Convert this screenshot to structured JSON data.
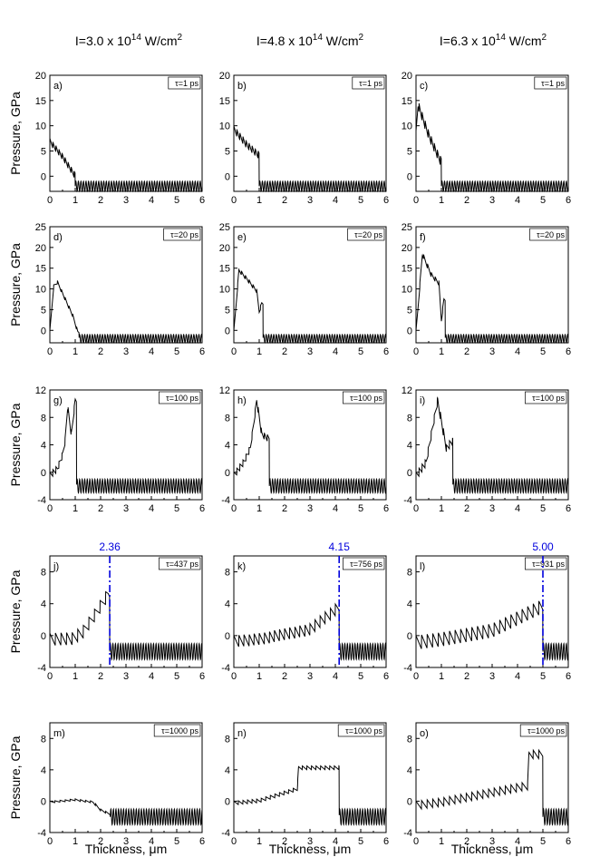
{
  "column_headers": [
    {
      "base": "I=3.0 x 10",
      "exp": "14",
      "unit": " W/cm",
      "unit_exp": "2"
    },
    {
      "base": "I=4.8 x 10",
      "exp": "14",
      "unit": " W/cm",
      "unit_exp": "2"
    },
    {
      "base": "I=6.3 x 10",
      "exp": "14",
      "unit": " W/cm",
      "unit_exp": "2"
    }
  ],
  "colors": {
    "line": "#000000",
    "marker": "#0000dd",
    "frame": "#000000"
  },
  "chart_data": {
    "type": "line",
    "ylabel": "Pressure, GPa",
    "xlabel": "Thickness, μm",
    "xlim": [
      0,
      6
    ],
    "xticks": [
      "0",
      "1",
      "2",
      "3",
      "4",
      "5",
      "6"
    ],
    "rows": [
      {
        "ylim": [
          -3,
          20
        ],
        "yticks": [
          0,
          5,
          10,
          15,
          20
        ],
        "ytick_labels": [
          "0",
          "5",
          "10",
          "15",
          "20"
        ]
      },
      {
        "ylim": [
          -3,
          25
        ],
        "yticks": [
          0,
          5,
          10,
          15,
          20,
          25
        ],
        "ytick_labels": [
          "0",
          "5",
          "10",
          "15",
          "20",
          "25"
        ]
      },
      {
        "ylim": [
          -4,
          12
        ],
        "yticks": [
          -4,
          0,
          4,
          8,
          12
        ],
        "ytick_labels": [
          "-4",
          "0",
          "4",
          "8",
          "12"
        ]
      },
      {
        "ylim": [
          -4,
          10
        ],
        "yticks": [
          -4,
          0,
          4,
          8
        ],
        "ytick_labels": [
          "-4",
          "0",
          "4",
          "8"
        ]
      },
      {
        "ylim": [
          -4,
          10
        ],
        "yticks": [
          -4,
          0,
          4,
          8
        ],
        "ytick_labels": [
          "-4",
          "0",
          "4",
          "8"
        ]
      }
    ],
    "background_oscillation": {
      "mean": -2,
      "amplitude": 1,
      "period": 0.1
    },
    "panels": [
      {
        "id": "a)",
        "row": 0,
        "col": 0,
        "time": "τ=1 ps",
        "front": 1.0,
        "profile": [
          [
            0,
            7.5
          ],
          [
            0.5,
            4.5
          ],
          [
            0.95,
            1.0
          ]
        ],
        "ripple": {
          "amp": 1.3,
          "period": 0.12
        }
      },
      {
        "id": "b)",
        "row": 0,
        "col": 1,
        "time": "τ=1 ps",
        "front": 1.0,
        "profile": [
          [
            0,
            10
          ],
          [
            0.5,
            7
          ],
          [
            0.95,
            5
          ]
        ],
        "ripple": {
          "amp": 1.5,
          "period": 0.12
        }
      },
      {
        "id": "c)",
        "row": 0,
        "col": 2,
        "time": "τ=1 ps",
        "front": 1.0,
        "profile": [
          [
            0,
            9
          ],
          [
            0.08,
            15
          ],
          [
            0.5,
            9
          ],
          [
            0.95,
            4
          ]
        ],
        "ripple": {
          "amp": 1.8,
          "period": 0.12
        }
      },
      {
        "id": "d)",
        "row": 1,
        "col": 0,
        "time": "τ=20 ps",
        "front": 1.15,
        "profile": [
          [
            0,
            0
          ],
          [
            0.15,
            11
          ],
          [
            0.3,
            12
          ],
          [
            0.6,
            8
          ],
          [
            0.9,
            4
          ],
          [
            1.1,
            0
          ]
        ],
        "ripple": {
          "amp": 0.8,
          "period": 0.15
        }
      },
      {
        "id": "e)",
        "row": 1,
        "col": 1,
        "time": "τ=20 ps",
        "front": 1.15,
        "profile": [
          [
            0,
            0
          ],
          [
            0.2,
            15
          ],
          [
            0.5,
            13
          ],
          [
            0.9,
            10
          ],
          [
            1.0,
            5
          ],
          [
            1.1,
            7
          ]
        ],
        "ripple": {
          "amp": 1.0,
          "period": 0.15
        }
      },
      {
        "id": "f)",
        "row": 1,
        "col": 2,
        "time": "τ=20 ps",
        "front": 1.15,
        "profile": [
          [
            0,
            0
          ],
          [
            0.25,
            19
          ],
          [
            0.6,
            14
          ],
          [
            0.9,
            12
          ],
          [
            1.0,
            3
          ],
          [
            1.1,
            8
          ]
        ],
        "ripple": {
          "amp": 1.2,
          "period": 0.15
        }
      },
      {
        "id": "g)",
        "row": 2,
        "col": 0,
        "time": "τ=100 ps",
        "front": 1.05,
        "profile": [
          [
            0,
            0
          ],
          [
            0.3,
            1
          ],
          [
            0.5,
            3
          ],
          [
            0.6,
            5
          ],
          [
            0.7,
            10
          ],
          [
            0.85,
            6
          ],
          [
            1.0,
            11
          ]
        ],
        "ripple": {
          "amp": 1.0,
          "period": 0.12
        }
      },
      {
        "id": "h)",
        "row": 2,
        "col": 1,
        "time": "τ=100 ps",
        "front": 1.4,
        "profile": [
          [
            0,
            0
          ],
          [
            0.4,
            2
          ],
          [
            0.65,
            4
          ],
          [
            0.8,
            8
          ],
          [
            0.9,
            11
          ],
          [
            1.1,
            6
          ],
          [
            1.3,
            5.5
          ]
        ],
        "ripple": {
          "amp": 1.0,
          "period": 0.12
        }
      },
      {
        "id": "i)",
        "row": 2,
        "col": 2,
        "time": "τ=100 ps",
        "front": 1.45,
        "profile": [
          [
            0,
            0
          ],
          [
            0.4,
            2
          ],
          [
            0.6,
            6
          ],
          [
            0.85,
            11
          ],
          [
            1.0,
            8
          ],
          [
            1.2,
            4
          ],
          [
            1.4,
            5
          ]
        ],
        "ripple": {
          "amp": 1.2,
          "period": 0.12
        }
      },
      {
        "id": "j)",
        "row": 3,
        "col": 0,
        "time": "τ=437 ps",
        "front": 2.36,
        "marker": 2.36,
        "marker_label": "2.36",
        "profile": [
          [
            0,
            0.3
          ],
          [
            0.9,
            0.4
          ],
          [
            1.3,
            1.2
          ],
          [
            1.8,
            3.5
          ],
          [
            2.3,
            6
          ]
        ],
        "ripple": {
          "amp": 1.6,
          "period": 0.22
        }
      },
      {
        "id": "k)",
        "row": 3,
        "col": 1,
        "time": "τ=756 ps",
        "front": 4.15,
        "marker": 4.15,
        "marker_label": "4.15",
        "profile": [
          [
            0,
            0
          ],
          [
            1.0,
            0.3
          ],
          [
            3.0,
            1.5
          ],
          [
            4.1,
            4.2
          ]
        ],
        "ripple": {
          "amp": 1.5,
          "period": 0.2
        }
      },
      {
        "id": "l)",
        "row": 3,
        "col": 2,
        "time": "τ=931 ps",
        "front": 5.0,
        "marker": 5.0,
        "marker_label": "5.00",
        "profile": [
          [
            0,
            0
          ],
          [
            1.0,
            0.4
          ],
          [
            3.0,
            1.5
          ],
          [
            4.95,
            4.5
          ]
        ],
        "ripple": {
          "amp": 1.8,
          "period": 0.22
        }
      },
      {
        "id": "m)",
        "row": 4,
        "col": 0,
        "time": "τ=1000 ps",
        "front": 2.38,
        "profile": [
          [
            0,
            0
          ],
          [
            1.0,
            0.3
          ],
          [
            1.7,
            0
          ],
          [
            2.0,
            -1
          ],
          [
            2.35,
            -1.5
          ]
        ],
        "ripple": {
          "amp": 0.25,
          "period": 0.2
        }
      },
      {
        "id": "n)",
        "row": 4,
        "col": 1,
        "time": "τ=1000 ps",
        "front": 4.15,
        "profile": [
          [
            0,
            0
          ],
          [
            1.0,
            0.3
          ],
          [
            2.5,
            1.8
          ],
          [
            2.55,
            4.5
          ],
          [
            4.1,
            4.5
          ]
        ],
        "ripple": {
          "amp": 0.5,
          "period": 0.18
        }
      },
      {
        "id": "o)",
        "row": 4,
        "col": 2,
        "time": "τ=1000 ps",
        "front": 5.0,
        "profile": [
          [
            0,
            0
          ],
          [
            1.0,
            0.4
          ],
          [
            4.4,
            2.5
          ],
          [
            4.45,
            6.5
          ],
          [
            4.95,
            6.5
          ]
        ],
        "ripple": {
          "amp": 1.1,
          "period": 0.22
        }
      }
    ]
  }
}
